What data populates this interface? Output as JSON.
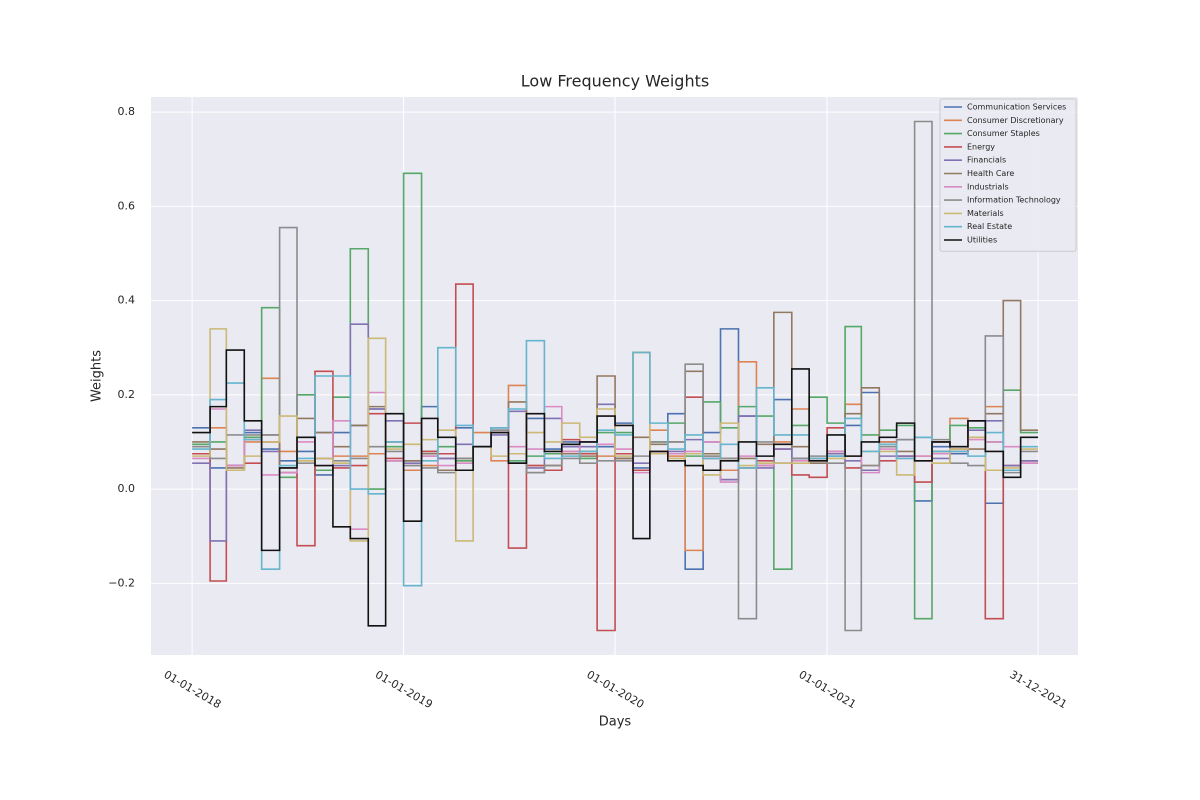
{
  "chart_data": {
    "type": "step",
    "title": "Low Frequency Weights",
    "x_label": "Days",
    "y_label": "Weights",
    "x": [
      "01-01-2018",
      "01-02-2018",
      "01-03-2018",
      "01-04-2018",
      "01-05-2018",
      "01-06-2018",
      "01-07-2018",
      "01-08-2018",
      "01-09-2018",
      "01-10-2018",
      "01-11-2018",
      "01-12-2018",
      "01-01-2019",
      "01-02-2019",
      "01-03-2019",
      "01-04-2019",
      "01-05-2019",
      "01-06-2019",
      "01-07-2019",
      "01-08-2019",
      "01-09-2019",
      "01-10-2019",
      "01-11-2019",
      "01-12-2019",
      "01-01-2020",
      "01-02-2020",
      "01-03-2020",
      "01-04-2020",
      "01-05-2020",
      "01-06-2020",
      "01-07-2020",
      "01-08-2020",
      "01-09-2020",
      "01-10-2020",
      "01-11-2020",
      "01-12-2020",
      "01-01-2021",
      "01-02-2021",
      "01-03-2021",
      "01-04-2021",
      "01-05-2021",
      "01-06-2021",
      "01-07-2021",
      "01-08-2021",
      "01-09-2021",
      "01-10-2021",
      "01-11-2021",
      "01-12-2021"
    ],
    "xlim": [
      "22-10-2017",
      "10-03-2022"
    ],
    "xticks": [
      "01-01-2018",
      "01-01-2019",
      "01-01-2020",
      "01-01-2021",
      "31-12-2021"
    ],
    "ylim": [
      -0.352,
      0.832
    ],
    "yticks": [
      {
        "value": -0.2,
        "label": "−0.2"
      },
      {
        "value": 0,
        "label": "0.0"
      },
      0.2,
      0.4,
      0.6,
      0.8
    ],
    "grid": true,
    "legend": "upper right",
    "series": [
      {
        "name": "Communication Services",
        "color": "#4c72b0",
        "values": [
          0.13,
          0.045,
          0.05,
          0.12,
          0.085,
          0.06,
          0.08,
          0.03,
          0.12,
          0.135,
          0.17,
          0.06,
          0.06,
          0.175,
          0.065,
          0.13,
          0.09,
          0.13,
          0.055,
          0.15,
          0.085,
          0.1,
          0.1,
          0.09,
          0.14,
          0.045,
          0.08,
          0.16,
          -0.17,
          0.12,
          0.34,
          0.155,
          0.05,
          0.19,
          0.065,
          0.065,
          0.07,
          0.135,
          0.205,
          0.1,
          0.105,
          -0.025,
          0.09,
          0.075,
          0.145,
          -0.03,
          0.04,
          0.06
        ]
      },
      {
        "name": "Consumer Discretionary",
        "color": "#dd8452",
        "values": [
          0.075,
          0.13,
          0.04,
          0.1,
          0.235,
          0.08,
          0.06,
          0.04,
          0.07,
          0.07,
          0.075,
          0.06,
          0.04,
          0.05,
          0.065,
          0.06,
          0.12,
          0.06,
          0.22,
          0.05,
          0.05,
          0.08,
          0.08,
          0.07,
          0.065,
          0.29,
          0.125,
          0.07,
          -0.13,
          0.07,
          0.04,
          0.27,
          0.05,
          0.1,
          0.17,
          0.065,
          0.08,
          0.18,
          0.05,
          0.1,
          0.07,
          0.07,
          0.08,
          0.15,
          0.11,
          0.175,
          0.04,
          0.06
        ]
      },
      {
        "name": "Consumer Staples",
        "color": "#55a868",
        "values": [
          0.095,
          0.1,
          0.04,
          0.11,
          0.385,
          0.025,
          0.2,
          0.04,
          0.195,
          0.51,
          0,
          0.09,
          0.67,
          0.08,
          0.09,
          0.06,
          0.09,
          0.125,
          0.06,
          0.07,
          0.075,
          0.09,
          0.065,
          0.12,
          0.12,
          0.04,
          0.1,
          0.14,
          0.07,
          0.185,
          0.13,
          0.175,
          0.155,
          -0.17,
          0.135,
          0.195,
          0.14,
          0.345,
          0.115,
          0.125,
          0.135,
          -0.275,
          0.1,
          0.135,
          0.13,
          0.1,
          0.21,
          0.12
        ]
      },
      {
        "name": "Energy",
        "color": "#c44e52",
        "values": [
          0.075,
          -0.195,
          0.05,
          0.055,
          0.1,
          0.035,
          -0.12,
          0.25,
          0.045,
          0.05,
          0.16,
          0.065,
          0.14,
          0.08,
          0.075,
          0.435,
          0.09,
          0.12,
          -0.125,
          0.05,
          0.04,
          0.105,
          0.075,
          -0.3,
          0.075,
          0.04,
          0.08,
          0.075,
          0.195,
          0.065,
          0.02,
          0.045,
          0.06,
          0.085,
          0.03,
          0.025,
          0.13,
          0.045,
          0.04,
          0.06,
          0.07,
          0.015,
          0.1,
          0.08,
          0.145,
          -0.275,
          0.05,
          0.055
        ]
      },
      {
        "name": "Financials",
        "color": "#8172b3",
        "values": [
          0.055,
          -0.11,
          0.05,
          0.125,
          0.08,
          0.035,
          0.11,
          0.12,
          0.05,
          0.35,
          0.17,
          0.145,
          0.055,
          0.07,
          0.065,
          0.095,
          0.09,
          0.115,
          0.165,
          0.045,
          0.15,
          0.09,
          0.09,
          0.18,
          0.065,
          0.055,
          0.075,
          0.08,
          0.105,
          0.1,
          0.02,
          0.155,
          0.045,
          0.085,
          0.065,
          0.055,
          0.075,
          0.06,
          0.04,
          0.07,
          0.07,
          0.11,
          0.065,
          0.09,
          0.125,
          0.145,
          0.05,
          0.06
        ]
      },
      {
        "name": "Health Care",
        "color": "#937860",
        "values": [
          0.1,
          0.085,
          0.045,
          0.105,
          0.115,
          0.045,
          0.15,
          0.12,
          0.09,
          0.135,
          0.175,
          0.1,
          0.06,
          0.075,
          0.04,
          0.065,
          0.09,
          0.12,
          0.185,
          0.035,
          0.05,
          0.075,
          0.07,
          0.24,
          0.065,
          0.11,
          0.095,
          0.1,
          0.25,
          0.075,
          0.065,
          0.065,
          0.095,
          0.375,
          0.09,
          0.055,
          0.08,
          0.16,
          0.215,
          0.09,
          0.08,
          0.06,
          0.08,
          0.085,
          0.085,
          0.16,
          0.4,
          0.125
        ]
      },
      {
        "name": "Industrials",
        "color": "#da8bc3",
        "values": [
          0.065,
          0.17,
          0.05,
          0.105,
          0.03,
          0.035,
          0.1,
          0.065,
          0.145,
          -0.085,
          0.205,
          0.06,
          0.05,
          0.07,
          0.05,
          0.055,
          0.09,
          0.13,
          0.09,
          0.085,
          0.175,
          0.08,
          0.1,
          0.095,
          0.085,
          0.035,
          0.08,
          0.075,
          0.08,
          0.1,
          0.015,
          0.07,
          0.05,
          0.055,
          0.06,
          0.06,
          0.08,
          0.07,
          0.035,
          0.085,
          0.065,
          0.07,
          0.075,
          0.085,
          0.105,
          0.1,
          0.09,
          0.055
        ]
      },
      {
        "name": "Information Technology",
        "color": "#8c8c8c",
        "values": [
          0.09,
          0.065,
          0.115,
          0.115,
          0.115,
          0.555,
          0.055,
          0.065,
          0.06,
          0.065,
          0.09,
          0.08,
          0.05,
          0.045,
          0.035,
          0.065,
          0.09,
          0.125,
          0.055,
          0.035,
          0.05,
          0.065,
          0.055,
          0.06,
          0.06,
          0.07,
          0.1,
          0.1,
          0.265,
          0.07,
          0.065,
          -0.275,
          0.1,
          0.055,
          0.065,
          0.07,
          0.055,
          -0.3,
          0.05,
          0.09,
          0.105,
          0.78,
          0.105,
          0.055,
          0.05,
          0.325,
          0.035,
          0.08
        ]
      },
      {
        "name": "Materials",
        "color": "#ccb974",
        "values": [
          0.07,
          0.34,
          0.04,
          0.07,
          0.1,
          0.155,
          0.06,
          0.065,
          0.055,
          -0.11,
          0.32,
          0.085,
          0.095,
          0.105,
          0.125,
          -0.11,
          0.09,
          0.07,
          0.075,
          0.12,
          0.1,
          0.14,
          0.11,
          0.17,
          0.07,
          0.29,
          0.075,
          0.065,
          0.075,
          0.03,
          0.14,
          0.05,
          0.055,
          0.055,
          0.055,
          0.06,
          0.065,
          0.07,
          0.08,
          0.08,
          0.03,
          0.11,
          0.055,
          0.085,
          0.11,
          0.04,
          0.045,
          0.085
        ]
      },
      {
        "name": "Real Estate",
        "color": "#64b5cd",
        "values": [
          0.085,
          0.19,
          0.225,
          0.105,
          -0.17,
          0.05,
          0.065,
          0.24,
          0.24,
          0,
          -0.01,
          0.1,
          -0.205,
          0.06,
          0.3,
          0.135,
          0.09,
          0.13,
          0.17,
          0.315,
          0.065,
          0.07,
          0.08,
          0.125,
          0.115,
          0.29,
          0.14,
          0.085,
          0.115,
          0.065,
          0.095,
          0.045,
          0.215,
          0.115,
          0.115,
          0.065,
          0.07,
          0.15,
          0.08,
          0.095,
          0.065,
          0.11,
          0.08,
          0.08,
          0.07,
          0.12,
          0.04,
          0.09
        ]
      },
      {
        "name": "Utilities",
        "color": "#111111",
        "values": [
          0.12,
          0.175,
          0.295,
          0.145,
          -0.13,
          0.045,
          0.11,
          0.05,
          -0.08,
          -0.105,
          -0.29,
          0.16,
          -0.068,
          0.15,
          0.11,
          0.04,
          0.09,
          0.12,
          0.055,
          0.16,
          0.08,
          0.095,
          0.1,
          0.155,
          0.135,
          -0.105,
          0.08,
          0.06,
          0.05,
          0.04,
          0.06,
          0.1,
          0.07,
          0.095,
          0.255,
          0.06,
          0.115,
          0.07,
          0.1,
          0.11,
          0.14,
          0.06,
          0.1,
          0.09,
          0.145,
          0.08,
          0.025,
          0.11
        ]
      }
    ]
  }
}
